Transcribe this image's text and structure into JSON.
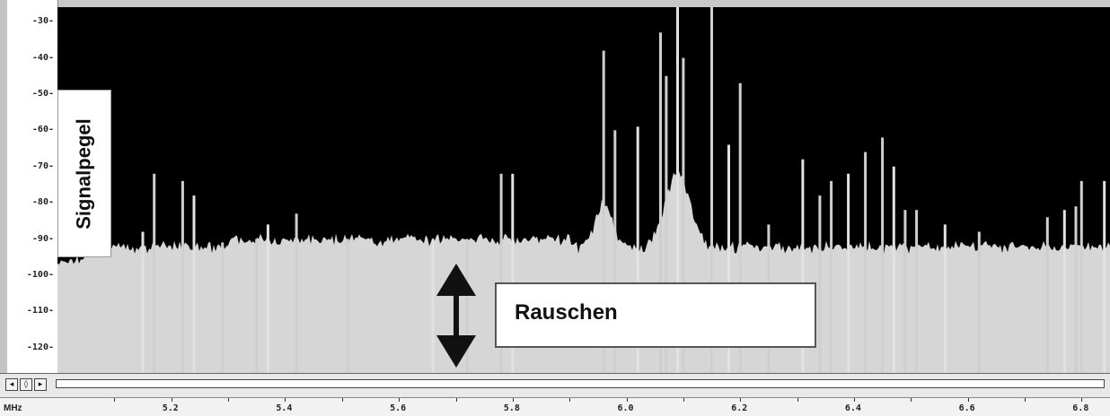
{
  "labels": {
    "y_axis_label": "Signalpegel",
    "noise_label": "Rauschen",
    "x_unit": "MHz"
  },
  "scrollbar": {
    "btn_left": "◂",
    "btn_mid": "◊",
    "btn_right": "▸"
  },
  "colors": {
    "plot_bg": "#000000",
    "spectrum_fill": "#d6d6d6",
    "noise_fill": "#cfcfcf"
  },
  "chart_data": {
    "type": "area",
    "xlabel": "MHz",
    "ylabel": "Signalpegel",
    "xlim": [
      5.0,
      6.85
    ],
    "ylim": [
      -127,
      -26
    ],
    "y_ticks": [
      "-30",
      "-40",
      "-50",
      "-60",
      "-70",
      "-80",
      "-90",
      "-100",
      "-110",
      "-120"
    ],
    "x_ticks": [
      "5.2",
      "5.4",
      "5.6",
      "5.8",
      "6.0",
      "6.2",
      "6.4",
      "6.6",
      "6.8"
    ],
    "noise_floor_db": -93,
    "peaks": [
      {
        "x": 5.15,
        "y": -88
      },
      {
        "x": 5.17,
        "y": -72
      },
      {
        "x": 5.22,
        "y": -74
      },
      {
        "x": 5.24,
        "y": -78
      },
      {
        "x": 5.29,
        "y": -91
      },
      {
        "x": 5.35,
        "y": -90
      },
      {
        "x": 5.37,
        "y": -86
      },
      {
        "x": 5.42,
        "y": -83
      },
      {
        "x": 5.51,
        "y": -90
      },
      {
        "x": 5.66,
        "y": -90
      },
      {
        "x": 5.72,
        "y": -90
      },
      {
        "x": 5.78,
        "y": -72
      },
      {
        "x": 5.8,
        "y": -72
      },
      {
        "x": 5.96,
        "y": -38
      },
      {
        "x": 5.98,
        "y": -60
      },
      {
        "x": 6.02,
        "y": -59
      },
      {
        "x": 6.06,
        "y": -33
      },
      {
        "x": 6.07,
        "y": -45
      },
      {
        "x": 6.09,
        "y": -26
      },
      {
        "x": 6.1,
        "y": -40
      },
      {
        "x": 6.15,
        "y": -26
      },
      {
        "x": 6.18,
        "y": -64
      },
      {
        "x": 6.2,
        "y": -47
      },
      {
        "x": 6.25,
        "y": -86
      },
      {
        "x": 6.31,
        "y": -68
      },
      {
        "x": 6.34,
        "y": -78
      },
      {
        "x": 6.36,
        "y": -74
      },
      {
        "x": 6.39,
        "y": -72
      },
      {
        "x": 6.42,
        "y": -66
      },
      {
        "x": 6.45,
        "y": -62
      },
      {
        "x": 6.47,
        "y": -70
      },
      {
        "x": 6.49,
        "y": -82
      },
      {
        "x": 6.51,
        "y": -82
      },
      {
        "x": 6.56,
        "y": -86
      },
      {
        "x": 6.62,
        "y": -88
      },
      {
        "x": 6.74,
        "y": -84
      },
      {
        "x": 6.77,
        "y": -82
      },
      {
        "x": 6.79,
        "y": -81
      },
      {
        "x": 6.8,
        "y": -74
      },
      {
        "x": 6.84,
        "y": -74
      }
    ],
    "humps": [
      {
        "x": 5.96,
        "width": 0.03,
        "y": -80
      },
      {
        "x": 6.09,
        "width": 0.045,
        "y": -72
      }
    ],
    "grid": false
  }
}
